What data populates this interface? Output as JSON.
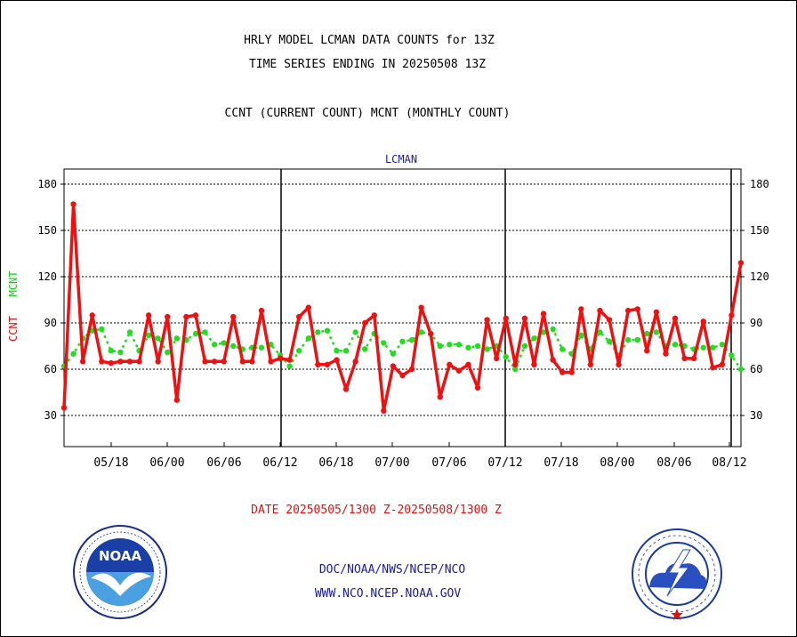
{
  "titles": {
    "line1": "HRLY MODEL LCMAN DATA COUNTS for 13Z",
    "line2": "TIME SERIES ENDING IN 20250508 13Z",
    "line3": "CCNT (CURRENT COUNT) MCNT (MONTHLY COUNT)"
  },
  "station_label": "LCMAN",
  "y_axis_label": {
    "ccnt": "CCNT",
    "mcnt": "MCNT"
  },
  "date_range": "DATE 20250505/1300 Z-20250508/1300 Z",
  "credits": {
    "line1": "DOC/NOAA/NWS/NCEP/NCO",
    "line2": "WWW.NCO.NCEP.NOAA.GOV"
  },
  "colors": {
    "ccnt": "#ee1111",
    "mcnt": "#22dd22",
    "text_blue": "#1a1aa0",
    "grid": "#000000"
  },
  "logos": {
    "left": {
      "icon": "noaa-logo-icon",
      "text": "NOAA",
      "ring_text": "NATIONAL OCEANIC AND ATMOSPHERIC ADMINISTRATION · U.S. DEPARTMENT OF COMMERCE"
    },
    "right": {
      "icon": "nws-logo-icon",
      "ring_text": "NATIONAL WEATHER SERVICE"
    }
  },
  "chart_data": {
    "type": "line",
    "ylim": [
      10,
      190
    ],
    "yticks": [
      30,
      60,
      90,
      120,
      150,
      180
    ],
    "xlim": [
      "05/08",
      "08/14"
    ],
    "xtick_labels": [
      "05/18",
      "06/00",
      "06/06",
      "06/12",
      "06/18",
      "07/00",
      "07/06",
      "07/12",
      "07/18",
      "08/00",
      "08/06",
      "08/12"
    ],
    "grid": "horizontal dashed at y ticks, vertical solid day separators",
    "series": [
      {
        "name": "CCNT",
        "color": "#ee1111",
        "values": [
          35,
          167,
          65,
          95,
          65,
          64,
          65,
          65,
          65,
          95,
          65,
          94,
          40,
          94,
          95,
          65,
          65,
          65,
          94,
          65,
          65,
          98,
          65,
          67,
          66,
          94,
          100,
          63,
          63,
          66,
          47,
          65,
          90,
          95,
          33,
          62,
          56,
          60,
          100,
          83,
          42,
          63,
          59,
          63,
          48,
          92,
          67,
          93,
          63,
          93,
          63,
          96,
          66,
          58,
          58,
          99,
          63,
          98,
          92,
          63,
          98,
          99,
          72,
          97,
          70,
          93,
          67,
          67,
          91,
          61,
          63,
          95,
          129
        ]
      },
      {
        "name": "MCNT",
        "color": "#22dd22",
        "values": [
          62,
          70,
          80,
          85,
          86,
          72,
          71,
          84,
          72,
          82,
          80,
          71,
          80,
          79,
          83,
          84,
          76,
          77,
          75,
          73,
          74,
          74,
          76,
          69,
          62,
          72,
          80,
          84,
          85,
          72,
          72,
          84,
          73,
          83,
          77,
          70,
          78,
          79,
          84,
          83,
          75,
          76,
          76,
          74,
          75,
          73,
          75,
          68,
          60,
          75,
          80,
          84,
          86,
          73,
          70,
          82,
          73,
          84,
          78,
          69,
          79,
          79,
          83,
          84,
          75,
          76,
          75,
          73,
          74,
          74,
          76,
          69,
          60
        ]
      }
    ]
  }
}
